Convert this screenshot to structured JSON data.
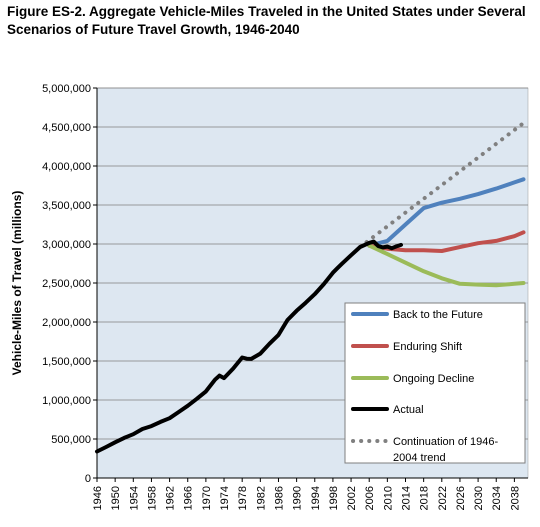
{
  "title_line1": "Figure ES-2. Aggregate Vehicle-Miles Traveled in the United States under Several",
  "title_line2": "Scenarios of Future Travel Growth, 1946-2040",
  "colors": {
    "plot_bg": "#dde7f1",
    "grid": "#7f7f7f",
    "back_to_future": "#4f81bd",
    "enduring_shift": "#c0504d",
    "ongoing_decline": "#9bbb59",
    "actual": "#000000",
    "continuation": "#808080"
  },
  "chart_data": {
    "type": "line",
    "ylabel": "Vehicle-Miles of Travel (millions)",
    "xlabel": "",
    "xlim": [
      1946,
      2041
    ],
    "ylim": [
      0,
      5000000
    ],
    "x_ticks": [
      1946,
      1950,
      1954,
      1958,
      1962,
      1966,
      1970,
      1974,
      1978,
      1982,
      1986,
      1990,
      1994,
      1998,
      2002,
      2006,
      2010,
      2014,
      2018,
      2022,
      2026,
      2030,
      2034,
      2038
    ],
    "y_ticks": [
      0,
      500000,
      1000000,
      1500000,
      2000000,
      2500000,
      3000000,
      3500000,
      4000000,
      4500000,
      5000000
    ],
    "y_tick_labels": [
      "0",
      "500,000",
      "1,000,000",
      "1,500,000",
      "2,000,000",
      "2,500,000",
      "3,000,000",
      "3,500,000",
      "4,000,000",
      "4,500,000",
      "5,000,000"
    ],
    "grid": "horizontal",
    "legend_position": "lower-right",
    "series": [
      {
        "name": "Back to the Future",
        "style": "solid",
        "points": [
          [
            2006,
            2980000
          ],
          [
            2010,
            3040000
          ],
          [
            2014,
            3250000
          ],
          [
            2018,
            3460000
          ],
          [
            2022,
            3530000
          ],
          [
            2026,
            3580000
          ],
          [
            2030,
            3640000
          ],
          [
            2034,
            3710000
          ],
          [
            2038,
            3790000
          ],
          [
            2040,
            3830000
          ]
        ]
      },
      {
        "name": "Enduring Shift",
        "style": "solid",
        "points": [
          [
            2006,
            2980000
          ],
          [
            2010,
            2940000
          ],
          [
            2014,
            2920000
          ],
          [
            2018,
            2920000
          ],
          [
            2022,
            2910000
          ],
          [
            2026,
            2960000
          ],
          [
            2030,
            3010000
          ],
          [
            2034,
            3040000
          ],
          [
            2038,
            3100000
          ],
          [
            2040,
            3150000
          ]
        ]
      },
      {
        "name": "Ongoing Decline",
        "style": "solid",
        "points": [
          [
            2006,
            2980000
          ],
          [
            2010,
            2870000
          ],
          [
            2014,
            2760000
          ],
          [
            2018,
            2650000
          ],
          [
            2022,
            2560000
          ],
          [
            2026,
            2490000
          ],
          [
            2030,
            2480000
          ],
          [
            2034,
            2470000
          ],
          [
            2038,
            2490000
          ],
          [
            2040,
            2500000
          ]
        ]
      },
      {
        "name": "Actual",
        "style": "solid",
        "points": [
          [
            1946,
            340000
          ],
          [
            1948,
            398000
          ],
          [
            1950,
            458000
          ],
          [
            1952,
            514000
          ],
          [
            1954,
            561000
          ],
          [
            1956,
            628000
          ],
          [
            1958,
            665000
          ],
          [
            1960,
            719000
          ],
          [
            1962,
            767000
          ],
          [
            1964,
            846000
          ],
          [
            1966,
            926000
          ],
          [
            1968,
            1016000
          ],
          [
            1970,
            1110000
          ],
          [
            1972,
            1260000
          ],
          [
            1973,
            1313000
          ],
          [
            1974,
            1281000
          ],
          [
            1976,
            1402000
          ],
          [
            1978,
            1545000
          ],
          [
            1979,
            1529000
          ],
          [
            1980,
            1527000
          ],
          [
            1982,
            1595000
          ],
          [
            1984,
            1720000
          ],
          [
            1986,
            1835000
          ],
          [
            1988,
            2025000
          ],
          [
            1990,
            2144000
          ],
          [
            1992,
            2247000
          ],
          [
            1994,
            2358000
          ],
          [
            1996,
            2486000
          ],
          [
            1998,
            2632000
          ],
          [
            1999,
            2691000
          ],
          [
            2000,
            2747000
          ],
          [
            2002,
            2856000
          ],
          [
            2004,
            2962000
          ],
          [
            2006,
            3014000
          ],
          [
            2007,
            3031000
          ],
          [
            2008,
            2973000
          ],
          [
            2009,
            2957000
          ],
          [
            2010,
            2967000
          ],
          [
            2011,
            2946000
          ],
          [
            2012,
            2969000
          ],
          [
            2013,
            2988000
          ]
        ]
      },
      {
        "name": "Continuation of 1946-2004 trend",
        "style": "dotted",
        "points": [
          [
            2004,
            2962000
          ],
          [
            2040,
            4550000
          ]
        ]
      }
    ]
  },
  "legend": [
    {
      "label": "Back to the Future",
      "lines": [
        "Back to the Future"
      ],
      "key": "back_to_future",
      "style": "solid"
    },
    {
      "label": "Enduring Shift",
      "lines": [
        "Enduring Shift"
      ],
      "key": "enduring_shift",
      "style": "solid"
    },
    {
      "label": "Ongoing Decline",
      "lines": [
        "Ongoing Decline"
      ],
      "key": "ongoing_decline",
      "style": "solid"
    },
    {
      "label": "Actual",
      "lines": [
        "Actual"
      ],
      "key": "actual",
      "style": "solid"
    },
    {
      "label": "Continuation of 1946-2004 trend",
      "lines": [
        "Continuation of 1946-",
        "2004 trend"
      ],
      "key": "continuation",
      "style": "dotted"
    }
  ]
}
